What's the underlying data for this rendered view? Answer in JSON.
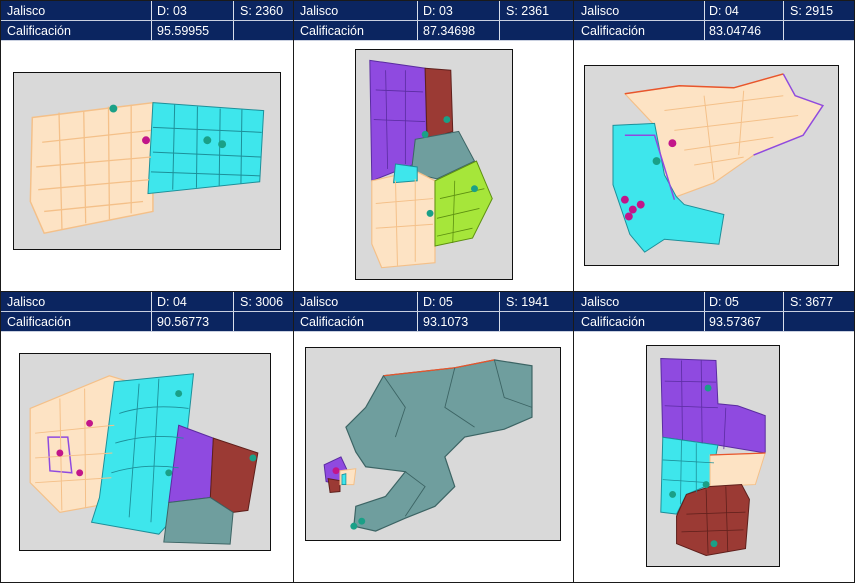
{
  "panels": [
    {
      "state": "Jalisco",
      "district": "D: 03",
      "section": "S: 2360",
      "score_label": "Calificación",
      "score": "95.59955",
      "pins": [
        "school-pin",
        "school-pin",
        "school-pin",
        "school-pin"
      ]
    },
    {
      "state": "Jalisco",
      "district": "D: 03",
      "section": "S: 2361",
      "score_label": "Calificación",
      "score": "87.34698",
      "pins": [
        "school-pin",
        "school-pin",
        "school-pin"
      ]
    },
    {
      "state": "Jalisco",
      "district": "D: 04",
      "section": "S: 2915",
      "score_label": "Calificación",
      "score": "83.04746",
      "pins": [
        "school-pin",
        "school-pin",
        "school-pin"
      ]
    },
    {
      "state": "Jalisco",
      "district": "D: 04",
      "section": "S: 3006",
      "score_label": "Calificación",
      "score": "90.56773",
      "pins": [
        "school-pin",
        "school-pin",
        "school-pin"
      ]
    },
    {
      "state": "Jalisco",
      "district": "D: 05",
      "section": "S: 1941",
      "score_label": "Calificación",
      "score": "93.1073",
      "pins": [
        "school-pin",
        "school-pin"
      ]
    },
    {
      "state": "Jalisco",
      "district": "D: 05",
      "section": "S: 3677",
      "score_label": "Calificación",
      "score": "93.57367",
      "pins": [
        "school-pin",
        "school-pin",
        "school-pin"
      ]
    }
  ],
  "colors": {
    "header_bg": "#0b2560",
    "map_bg": "#d9d9d9",
    "peach": "#fde3c4",
    "cyan": "#3ee6ec",
    "purple": "#8f4ae0",
    "maroon": "#9b3a34",
    "slate": "#6f9e9e",
    "lime": "#a6e63a",
    "street": "#f4c089"
  }
}
